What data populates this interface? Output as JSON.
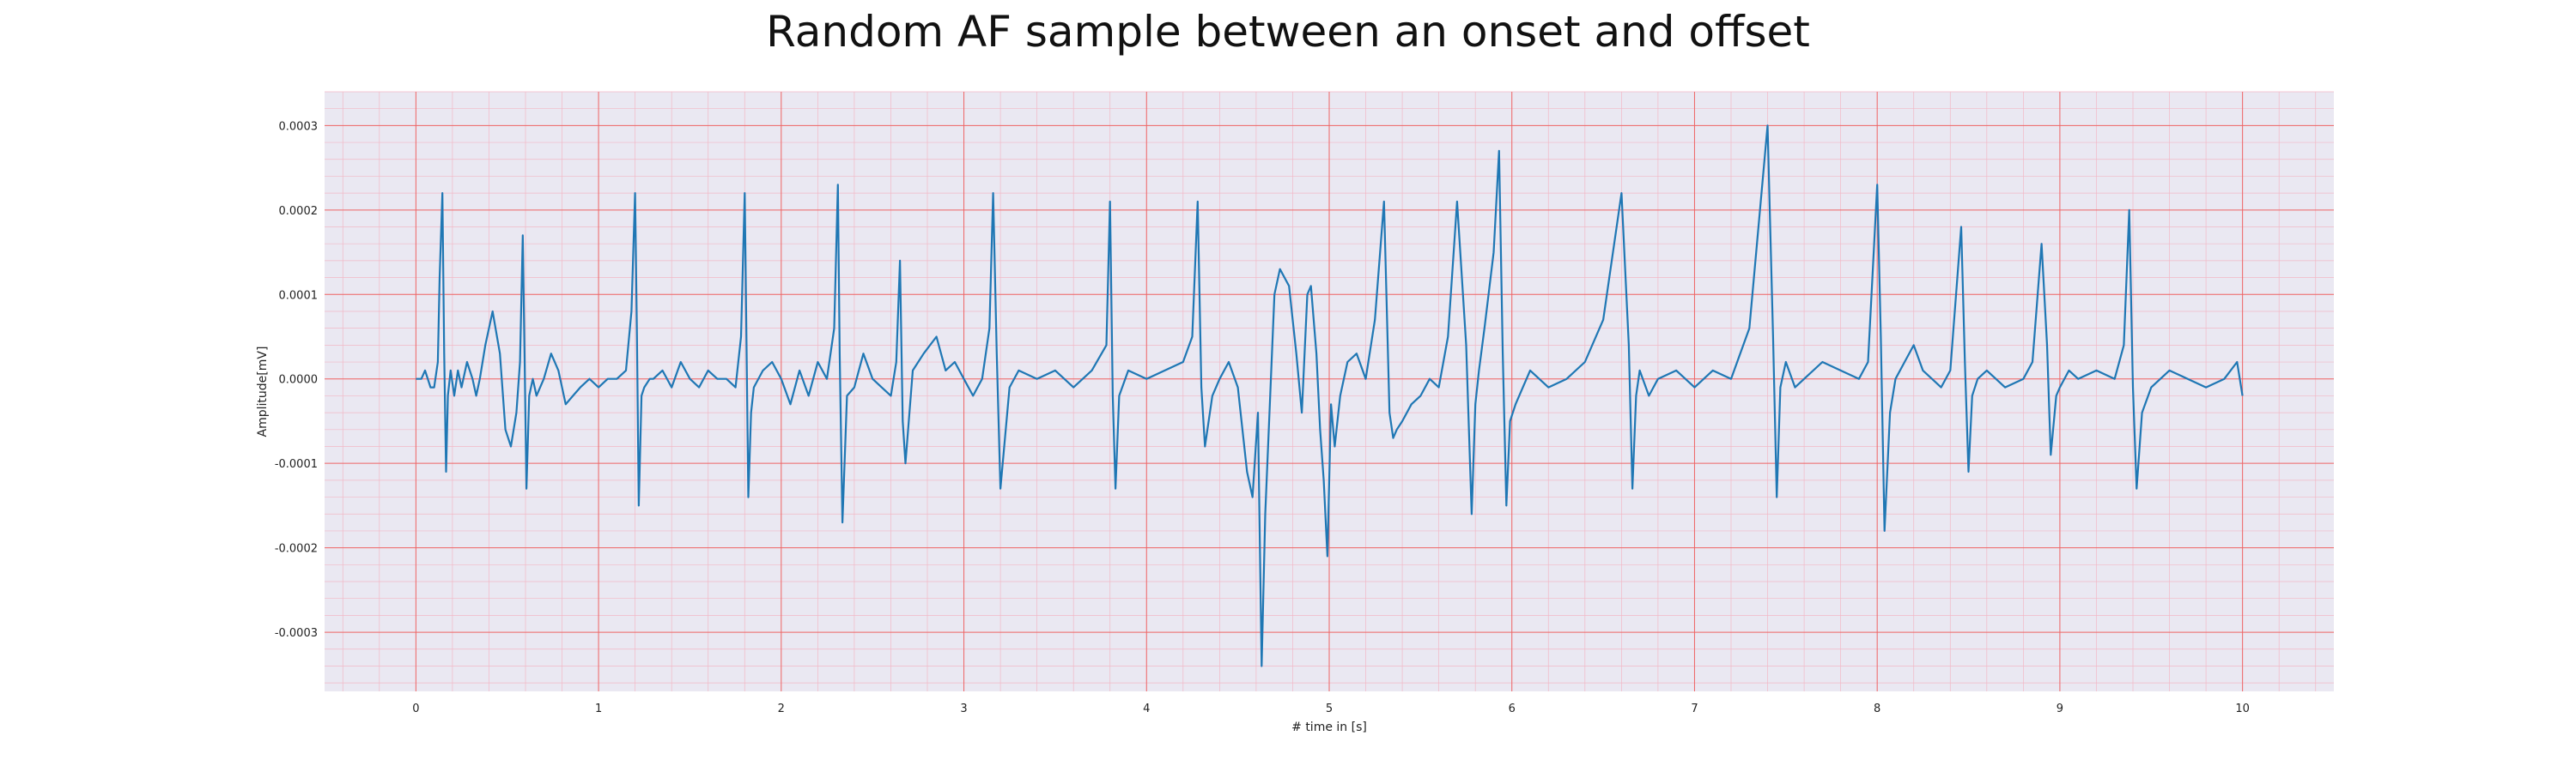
{
  "chart_data": {
    "type": "line",
    "title": "Random AF sample between an onset and offset",
    "xlabel": "# time in [s]",
    "ylabel": "Amplitude[mV]",
    "xlim": [
      -0.5,
      10.5
    ],
    "ylim": [
      -0.00037,
      0.00034
    ],
    "xticks": [
      0,
      1,
      2,
      3,
      4,
      5,
      6,
      7,
      8,
      9,
      10
    ],
    "xtick_labels": [
      "0",
      "1",
      "2",
      "3",
      "4",
      "5",
      "6",
      "7",
      "8",
      "9",
      "10"
    ],
    "yticks": [
      -0.0003,
      -0.0002,
      -0.0001,
      0.0,
      0.0001,
      0.0002,
      0.0003
    ],
    "ytick_labels": [
      "-0.0003",
      "-0.0002",
      "-0.0001",
      "0.0000",
      "0.0001",
      "0.0002",
      "0.0003"
    ],
    "grid": true,
    "minor_grid": true,
    "colors": {
      "background": "#eae8f2",
      "major_grid": "#ee6666",
      "minor_grid": "#f2b8c6",
      "series": "#1f77b4"
    },
    "series": [
      {
        "color": "#1f77b4",
        "x": [
          0,
          0.03,
          0.05,
          0.08,
          0.1,
          0.12,
          0.13,
          0.145,
          0.155,
          0.165,
          0.175,
          0.19,
          0.21,
          0.23,
          0.25,
          0.28,
          0.31,
          0.33,
          0.35,
          0.38,
          0.42,
          0.46,
          0.49,
          0.52,
          0.55,
          0.57,
          0.585,
          0.595,
          0.605,
          0.62,
          0.64,
          0.66,
          0.7,
          0.74,
          0.78,
          0.82,
          0.86,
          0.9,
          0.95,
          1.0,
          1.05,
          1.1,
          1.15,
          1.18,
          1.2,
          1.21,
          1.22,
          1.235,
          1.25,
          1.28,
          1.3,
          1.35,
          1.4,
          1.45,
          1.5,
          1.55,
          1.6,
          1.65,
          1.7,
          1.75,
          1.78,
          1.8,
          1.81,
          1.82,
          1.835,
          1.85,
          1.9,
          1.95,
          2.0,
          2.05,
          2.1,
          2.15,
          2.2,
          2.25,
          2.29,
          2.31,
          2.32,
          2.335,
          2.36,
          2.4,
          2.45,
          2.5,
          2.55,
          2.6,
          2.63,
          2.65,
          2.665,
          2.68,
          2.72,
          2.78,
          2.85,
          2.9,
          2.95,
          3.0,
          3.05,
          3.1,
          3.14,
          3.16,
          3.18,
          3.2,
          3.25,
          3.3,
          3.4,
          3.5,
          3.6,
          3.7,
          3.78,
          3.8,
          3.815,
          3.83,
          3.85,
          3.9,
          4.0,
          4.1,
          4.2,
          4.25,
          4.28,
          4.3,
          4.32,
          4.36,
          4.4,
          4.45,
          4.5,
          4.53,
          4.55,
          4.58,
          4.61,
          4.63,
          4.65,
          4.7,
          4.73,
          4.78,
          4.82,
          4.85,
          4.88,
          4.9,
          4.93,
          4.95,
          4.97,
          4.99,
          5.01,
          5.03,
          5.06,
          5.1,
          5.15,
          5.2,
          5.25,
          5.3,
          5.33,
          5.35,
          5.37,
          5.4,
          5.45,
          5.5,
          5.55,
          5.6,
          5.65,
          5.7,
          5.75,
          5.78,
          5.8,
          5.82,
          5.85,
          5.9,
          5.93,
          5.95,
          5.97,
          5.99,
          6.02,
          6.06,
          6.1,
          6.2,
          6.3,
          6.4,
          6.5,
          6.6,
          6.64,
          6.66,
          6.68,
          6.7,
          6.75,
          6.8,
          6.9,
          7.0,
          7.1,
          7.2,
          7.3,
          7.4,
          7.43,
          7.45,
          7.47,
          7.5,
          7.55,
          7.6,
          7.7,
          7.8,
          7.9,
          7.95,
          8.0,
          8.02,
          8.04,
          8.07,
          8.1,
          8.15,
          8.2,
          8.25,
          8.3,
          8.35,
          8.4,
          8.46,
          8.48,
          8.5,
          8.52,
          8.55,
          8.6,
          8.7,
          8.8,
          8.85,
          8.9,
          8.93,
          8.95,
          8.98,
          9.0,
          9.05,
          9.1,
          9.2,
          9.3,
          9.35,
          9.38,
          9.4,
          9.42,
          9.45,
          9.5,
          9.6,
          9.7,
          9.8,
          9.9,
          9.97,
          10.0
        ],
        "y": [
          0.0,
          0.0,
          1e-05,
          -1e-05,
          -1e-05,
          2e-05,
          0.00012,
          0.00022,
          3e-05,
          -0.00011,
          -2e-05,
          1e-05,
          -2e-05,
          1e-05,
          -1e-05,
          2e-05,
          0.0,
          -2e-05,
          0.0,
          4e-05,
          8e-05,
          3e-05,
          -6e-05,
          -8e-05,
          -4e-05,
          2e-05,
          0.00017,
          3e-05,
          -0.00013,
          -2e-05,
          0.0,
          -2e-05,
          0.0,
          3e-05,
          1e-05,
          -3e-05,
          -2e-05,
          -1e-05,
          0.0,
          -1e-05,
          0.0,
          0.0,
          1e-05,
          8e-05,
          0.00022,
          5e-05,
          -0.00015,
          -2e-05,
          -1e-05,
          0.0,
          0.0,
          1e-05,
          -1e-05,
          2e-05,
          0.0,
          -1e-05,
          1e-05,
          0.0,
          0.0,
          -1e-05,
          5e-05,
          0.00022,
          4e-05,
          -0.00014,
          -4e-05,
          -1e-05,
          1e-05,
          2e-05,
          0.0,
          -3e-05,
          1e-05,
          -2e-05,
          2e-05,
          0.0,
          6e-05,
          0.00023,
          3e-05,
          -0.00017,
          -2e-05,
          -1e-05,
          3e-05,
          0.0,
          -1e-05,
          -2e-05,
          2e-05,
          0.00014,
          -5e-05,
          -0.0001,
          1e-05,
          3e-05,
          5e-05,
          1e-05,
          2e-05,
          0.0,
          -2e-05,
          0.0,
          6e-05,
          0.00022,
          3e-05,
          -0.00013,
          -1e-05,
          1e-05,
          0.0,
          1e-05,
          -1e-05,
          1e-05,
          4e-05,
          0.00021,
          -2e-05,
          -0.00013,
          -2e-05,
          1e-05,
          0.0,
          1e-05,
          2e-05,
          5e-05,
          0.00021,
          -1e-05,
          -8e-05,
          -2e-05,
          0.0,
          2e-05,
          -1e-05,
          -7e-05,
          -0.00011,
          -0.00014,
          -4e-05,
          -0.00034,
          -0.00016,
          0.0001,
          0.00013,
          0.00011,
          3e-05,
          -4e-05,
          0.0001,
          0.00011,
          3e-05,
          -6e-05,
          -0.00012,
          -0.00021,
          -3e-05,
          -8e-05,
          -2e-05,
          2e-05,
          3e-05,
          0.0,
          7e-05,
          0.00021,
          -4e-05,
          -7e-05,
          -6e-05,
          -5e-05,
          -3e-05,
          -2e-05,
          0.0,
          -1e-05,
          5e-05,
          0.00021,
          4e-05,
          -0.00016,
          -3e-05,
          1e-05,
          6e-05,
          0.00015,
          0.00027,
          3e-05,
          -0.00015,
          -5e-05,
          -3e-05,
          -1e-05,
          1e-05,
          -1e-05,
          0.0,
          2e-05,
          7e-05,
          0.00022,
          4e-05,
          -0.00013,
          -2e-05,
          1e-05,
          -2e-05,
          0.0,
          1e-05,
          -1e-05,
          1e-05,
          0.0,
          6e-05,
          0.0003,
          5e-05,
          -0.00014,
          -1e-05,
          2e-05,
          -1e-05,
          0.0,
          2e-05,
          1e-05,
          0.0,
          2e-05,
          0.00023,
          5e-05,
          -0.00018,
          -4e-05,
          0.0,
          2e-05,
          4e-05,
          1e-05,
          0.0,
          -1e-05,
          1e-05,
          0.00018,
          2e-05,
          -0.00011,
          -2e-05,
          0.0,
          1e-05,
          -1e-05,
          0.0,
          2e-05,
          0.00016,
          4e-05,
          -9e-05,
          -2e-05,
          -1e-05,
          1e-05,
          0.0,
          1e-05,
          0.0,
          4e-05,
          0.0002,
          -1e-05,
          -0.00013,
          -4e-05,
          -1e-05,
          1e-05,
          0.0,
          -1e-05,
          0.0,
          2e-05,
          -2e-05
        ]
      }
    ]
  }
}
